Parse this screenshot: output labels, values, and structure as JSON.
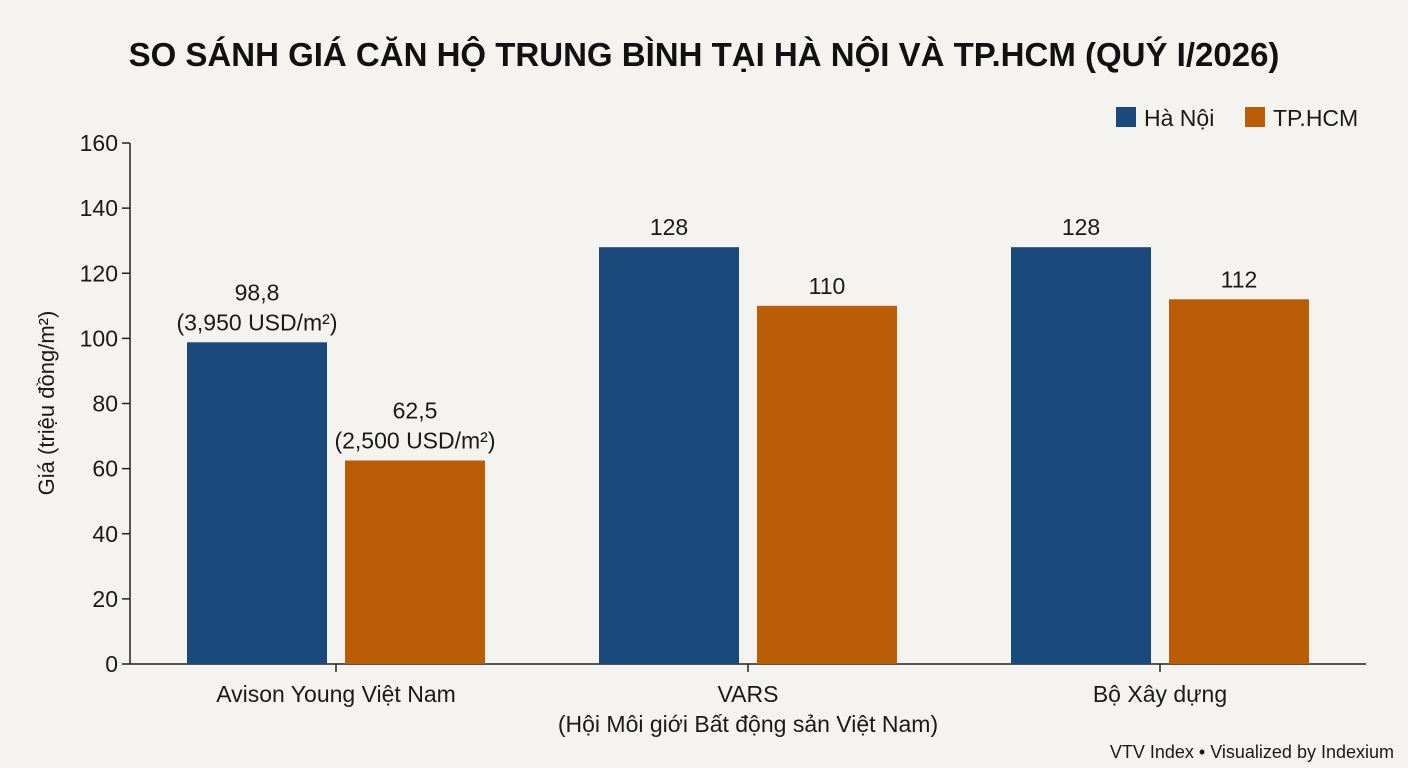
{
  "chart_data": {
    "type": "bar",
    "title": "SO SÁNH GIÁ CĂN HỘ TRUNG BÌNH TẠI HÀ NỘI VÀ TP.HCM (QUÝ I/2026)",
    "ylabel": "Giá (triệu đồng/m²)",
    "xlabel": "",
    "ylim": [
      0,
      160
    ],
    "yticks": [
      0,
      20,
      40,
      60,
      80,
      100,
      120,
      140,
      160
    ],
    "categories": [
      [
        "Avison Young Việt Nam"
      ],
      [
        "VARS",
        "(Hội Môi giới Bất động sản Việt Nam)"
      ],
      [
        "Bộ Xây dựng"
      ]
    ],
    "series": [
      {
        "name": "Hà Nội",
        "color": "#1a4a7c",
        "values": [
          98.8,
          128,
          128
        ],
        "labels": [
          [
            "98,8",
            "(3,950 USD/m²)"
          ],
          [
            "128"
          ],
          [
            "128"
          ]
        ]
      },
      {
        "name": "TP.HCM",
        "color": "#bb5c06",
        "values": [
          62.5,
          110,
          112
        ],
        "labels": [
          [
            "62,5",
            "(2,500 USD/m²)"
          ],
          [
            "110"
          ],
          [
            "112"
          ]
        ]
      }
    ],
    "legend_position": "top-right",
    "grid": false
  },
  "source_note": "VTV Index • Visualized by Indexium"
}
